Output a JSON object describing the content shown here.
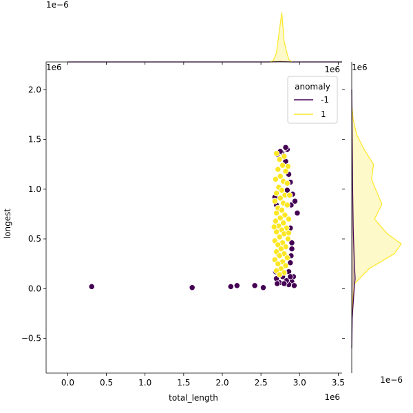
{
  "chart_data": {
    "type": "scatter",
    "subtype": "jointplot",
    "xlabel": "total_length",
    "ylabel": "longest",
    "x_offset_label": "1e6",
    "y_offset_label": "1e6",
    "top_marginal_offset_label": "1e−6",
    "right_marginal_offset_label": "1e−6",
    "xlim": [
      -0.28,
      3.55
    ],
    "ylim": [
      -0.85,
      2.28
    ],
    "x_ticks": [
      0.0,
      0.5,
      1.0,
      1.5,
      2.0,
      2.5,
      3.0,
      3.5
    ],
    "x_tick_labels": [
      "0.0",
      "0.5",
      "1.0",
      "1.5",
      "2.0",
      "2.5",
      "3.0",
      "3.5"
    ],
    "y_ticks": [
      -0.5,
      0.0,
      0.5,
      1.0,
      1.5,
      2.0
    ],
    "y_tick_labels": [
      "−0.5",
      "0.0",
      "0.5",
      "1.0",
      "1.5",
      "2.0"
    ],
    "grid": false,
    "legend": {
      "title": "anomaly",
      "position": "top-right",
      "entries": [
        {
          "label": "-1",
          "color": "#440154"
        },
        {
          "label": "1",
          "color": "#fde725"
        }
      ]
    },
    "series": [
      {
        "name": "-1",
        "color": "#440154",
        "points": [
          [
            0.31,
            0.02
          ],
          [
            1.61,
            0.01
          ],
          [
            2.11,
            0.02
          ],
          [
            2.19,
            0.03
          ],
          [
            2.42,
            0.03
          ],
          [
            2.53,
            0.01
          ],
          [
            2.84,
            1.4
          ],
          [
            2.77,
            1.37
          ],
          [
            2.71,
            1.35
          ],
          [
            2.82,
            1.28
          ],
          [
            2.86,
            1.15
          ],
          [
            2.88,
            1.07
          ],
          [
            2.91,
            0.95
          ],
          [
            2.89,
            0.84
          ],
          [
            2.94,
            0.88
          ],
          [
            2.97,
            0.76
          ],
          [
            2.88,
            0.61
          ],
          [
            2.9,
            0.46
          ],
          [
            2.89,
            0.33
          ],
          [
            2.88,
            0.26
          ],
          [
            2.86,
            0.17
          ],
          [
            2.92,
            0.12
          ],
          [
            2.9,
            0.07
          ],
          [
            2.93,
            0.03
          ],
          [
            2.86,
            0.04
          ],
          [
            2.83,
            0.08
          ],
          [
            2.78,
            0.12
          ],
          [
            2.74,
            0.06
          ],
          [
            2.7,
            0.1
          ],
          [
            2.71,
            0.05
          ],
          [
            2.8,
            0.05
          ],
          [
            2.88,
            0.12
          ],
          [
            2.69,
            0.17
          ],
          [
            2.73,
            0.34
          ],
          [
            2.7,
            0.84
          ],
          [
            2.68,
            0.92
          ],
          [
            2.82,
            1.42
          ],
          [
            2.75,
            1.38
          ],
          [
            2.9,
            0.4
          ],
          [
            2.84,
            0.99
          ]
        ]
      },
      {
        "name": "1",
        "color": "#fde725",
        "points": [
          [
            2.7,
            1.36
          ],
          [
            2.74,
            1.3
          ],
          [
            2.8,
            1.33
          ],
          [
            2.78,
            1.24
          ],
          [
            2.72,
            1.2
          ],
          [
            2.82,
            1.18
          ],
          [
            2.75,
            1.13
          ],
          [
            2.69,
            1.1
          ],
          [
            2.79,
            1.08
          ],
          [
            2.84,
            1.06
          ],
          [
            2.73,
            1.02
          ],
          [
            2.77,
            0.99
          ],
          [
            2.7,
            0.96
          ],
          [
            2.81,
            0.94
          ],
          [
            2.75,
            0.91
          ],
          [
            2.68,
            0.88
          ],
          [
            2.79,
            0.86
          ],
          [
            2.84,
            0.84
          ],
          [
            2.72,
            0.81
          ],
          [
            2.77,
            0.79
          ],
          [
            2.7,
            0.76
          ],
          [
            2.81,
            0.74
          ],
          [
            2.75,
            0.71
          ],
          [
            2.86,
            0.7
          ],
          [
            2.69,
            0.68
          ],
          [
            2.79,
            0.66
          ],
          [
            2.73,
            0.63
          ],
          [
            2.83,
            0.61
          ],
          [
            2.77,
            0.59
          ],
          [
            2.7,
            0.57
          ],
          [
            2.8,
            0.55
          ],
          [
            2.74,
            0.52
          ],
          [
            2.85,
            0.5
          ],
          [
            2.68,
            0.48
          ],
          [
            2.78,
            0.46
          ],
          [
            2.72,
            0.44
          ],
          [
            2.82,
            0.42
          ],
          [
            2.76,
            0.4
          ],
          [
            2.7,
            0.37
          ],
          [
            2.8,
            0.35
          ],
          [
            2.74,
            0.33
          ],
          [
            2.84,
            0.31
          ],
          [
            2.68,
            0.29
          ],
          [
            2.78,
            0.27
          ],
          [
            2.72,
            0.25
          ],
          [
            2.82,
            0.23
          ],
          [
            2.76,
            0.2
          ],
          [
            2.7,
            0.18
          ],
          [
            2.8,
            0.16
          ],
          [
            2.74,
            0.14
          ],
          [
            2.86,
            0.56
          ],
          [
            2.87,
            0.94
          ],
          [
            2.67,
            0.62
          ],
          [
            2.85,
            1.23
          ]
        ]
      }
    ],
    "marginal_x": {
      "series": [
        {
          "name": "-1",
          "color": "#440154",
          "x": [
            0.0,
            2.6,
            2.75,
            2.9,
            3.55
          ],
          "density": [
            0.0,
            0.0,
            0.01,
            0.0,
            0.0
          ]
        },
        {
          "name": "1",
          "color": "#fde725",
          "x": [
            2.62,
            2.66,
            2.7,
            2.74,
            2.77,
            2.8,
            2.83,
            2.86,
            2.9
          ],
          "density": [
            0.0,
            0.03,
            0.18,
            0.66,
            1.0,
            0.42,
            0.22,
            0.05,
            0.0
          ]
        }
      ]
    },
    "marginal_y": {
      "series": [
        {
          "name": "1",
          "color": "#fde725",
          "y": [
            -0.25,
            -0.1,
            0.05,
            0.2,
            0.35,
            0.45,
            0.55,
            0.7,
            0.85,
            1.0,
            1.1,
            1.25,
            1.4,
            1.55,
            1.7,
            1.85
          ],
          "density": [
            0.0,
            0.02,
            0.06,
            0.35,
            0.86,
            1.0,
            0.72,
            0.46,
            0.61,
            0.48,
            0.4,
            0.44,
            0.25,
            0.1,
            0.03,
            0.0
          ]
        },
        {
          "name": "-1",
          "color": "#440154",
          "y": [
            -0.6,
            -0.3,
            0.0,
            0.1,
            0.3,
            0.6,
            1.0,
            1.5,
            2.0
          ],
          "density": [
            0.0,
            0.01,
            0.05,
            0.07,
            0.05,
            0.03,
            0.02,
            0.01,
            0.0
          ]
        }
      ]
    }
  }
}
